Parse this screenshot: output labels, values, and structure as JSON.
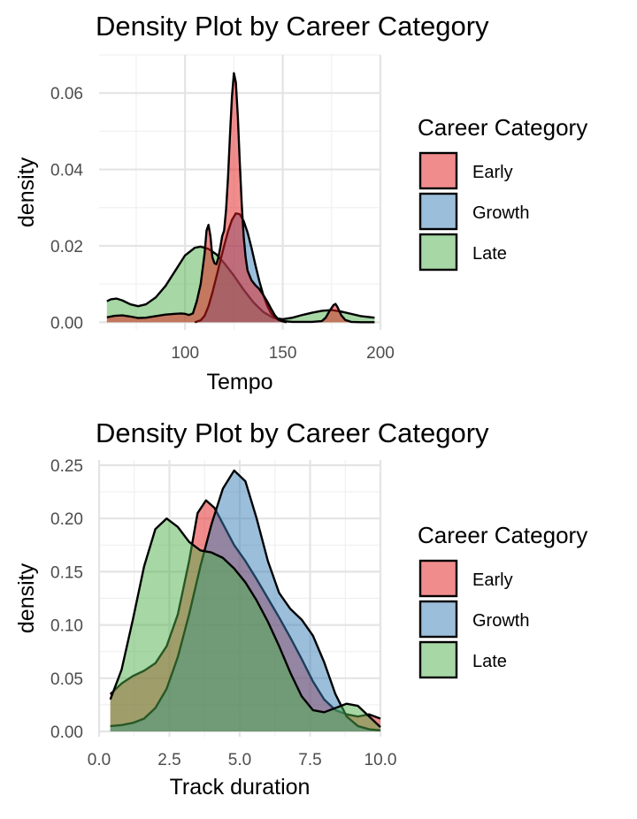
{
  "chart_data": [
    {
      "type": "area",
      "title": "Density Plot by Career Category",
      "xlabel": "Tempo",
      "ylabel": "density",
      "xlim": [
        56,
        200
      ],
      "ylim": [
        -0.002,
        0.07
      ],
      "x_ticks": [
        {
          "v": 100,
          "label": "100"
        },
        {
          "v": 150,
          "label": "150"
        },
        {
          "v": 200,
          "label": "200"
        }
      ],
      "y_ticks": [
        {
          "v": 0,
          "label": "0.00"
        },
        {
          "v": 0.02,
          "label": "0.02"
        },
        {
          "v": 0.04,
          "label": "0.04"
        },
        {
          "v": 0.06,
          "label": "0.06"
        }
      ],
      "grid": true,
      "legend": {
        "title": "Career Category",
        "position": "right"
      },
      "series": [
        {
          "name": "Late",
          "color": "#4DAF4A",
          "points": [
            [
              60,
              0.0055
            ],
            [
              62,
              0.006
            ],
            [
              65,
              0.0062
            ],
            [
              68,
              0.0057
            ],
            [
              72,
              0.0047
            ],
            [
              76,
              0.0042
            ],
            [
              80,
              0.0047
            ],
            [
              85,
              0.0065
            ],
            [
              90,
              0.0095
            ],
            [
              95,
              0.0135
            ],
            [
              100,
              0.0175
            ],
            [
              105,
              0.0195
            ],
            [
              108,
              0.0198
            ],
            [
              112,
              0.0192
            ],
            [
              116,
              0.0178
            ],
            [
              120,
              0.0155
            ],
            [
              125,
              0.0122
            ],
            [
              130,
              0.0085
            ],
            [
              135,
              0.0052
            ],
            [
              140,
              0.0027
            ],
            [
              145,
              0.0012
            ],
            [
              150,
              0.0008
            ],
            [
              155,
              0.0012
            ],
            [
              160,
              0.0019
            ],
            [
              165,
              0.0025
            ],
            [
              170,
              0.003
            ],
            [
              175,
              0.0032
            ],
            [
              180,
              0.0028
            ],
            [
              185,
              0.0022
            ],
            [
              190,
              0.0016
            ],
            [
              197,
              0.0012
            ]
          ]
        },
        {
          "name": "Growth",
          "color": "#377EB8",
          "points": [
            [
              105,
              0
            ],
            [
              108,
              0.0005
            ],
            [
              110,
              0.0017
            ],
            [
              112,
              0.0042
            ],
            [
              114,
              0.0078
            ],
            [
              116,
              0.0118
            ],
            [
              118,
              0.016
            ],
            [
              120,
              0.02
            ],
            [
              122,
              0.0238
            ],
            [
              124,
              0.0268
            ],
            [
              126,
              0.0285
            ],
            [
              128,
              0.0283
            ],
            [
              130,
              0.0265
            ],
            [
              132,
              0.0235
            ],
            [
              134,
              0.0195
            ],
            [
              136,
              0.015
            ],
            [
              138,
              0.0108
            ],
            [
              140,
              0.0072
            ],
            [
              142,
              0.0044
            ],
            [
              144,
              0.0024
            ],
            [
              146,
              0.0012
            ],
            [
              148,
              0.0006
            ],
            [
              150,
              0.0002
            ],
            [
              152,
              0
            ]
          ]
        },
        {
          "name": "Early",
          "color": "#E41A1C",
          "points": [
            [
              60,
              0.0013
            ],
            [
              64,
              0.0017
            ],
            [
              68,
              0.0018
            ],
            [
              72,
              0.0015
            ],
            [
              76,
              0.0011
            ],
            [
              80,
              0.0012
            ],
            [
              85,
              0.0016
            ],
            [
              90,
              0.002
            ],
            [
              95,
              0.0022
            ],
            [
              98,
              0.0023
            ],
            [
              100,
              0.0022
            ],
            [
              102,
              0.0019
            ],
            [
              104,
              0.0023
            ],
            [
              106,
              0.0055
            ],
            [
              108,
              0.01
            ],
            [
              110,
              0.018
            ],
            [
              111,
              0.024
            ],
            [
              112,
              0.0255
            ],
            [
              113,
              0.0225
            ],
            [
              114,
              0.017
            ],
            [
              115,
              0.0155
            ],
            [
              116,
              0.0152
            ],
            [
              117,
              0.0168
            ],
            [
              118,
              0.0195
            ],
            [
              119,
              0.0225
            ],
            [
              120,
              0.024
            ],
            [
              121,
              0.0295
            ],
            [
              122,
              0.038
            ],
            [
              123,
              0.049
            ],
            [
              124,
              0.059
            ],
            [
              125,
              0.0652
            ],
            [
              126,
              0.0628
            ],
            [
              127,
              0.054
            ],
            [
              128,
              0.042
            ],
            [
              129,
              0.031
            ],
            [
              130,
              0.0225
            ],
            [
              131,
              0.017
            ],
            [
              132,
              0.0135
            ],
            [
              134,
              0.011
            ],
            [
              136,
              0.0097
            ],
            [
              138,
              0.0087
            ],
            [
              140,
              0.0072
            ],
            [
              142,
              0.0055
            ],
            [
              144,
              0.0036
            ],
            [
              146,
              0.0018
            ],
            [
              148,
              0.0006
            ],
            [
              150,
              0.0003
            ],
            [
              155,
              0.0001
            ],
            [
              165,
              0.0001
            ],
            [
              170,
              0.0003
            ],
            [
              172,
              0.0012
            ],
            [
              174,
              0.003
            ],
            [
              176,
              0.0045
            ],
            [
              177,
              0.0048
            ],
            [
              178,
              0.004
            ],
            [
              180,
              0.0018
            ],
            [
              182,
              0.0006
            ],
            [
              185,
              0.0001
            ],
            [
              190,
              0
            ],
            [
              197,
              0
            ]
          ]
        }
      ]
    },
    {
      "type": "area",
      "title": "Density Plot by Career Category",
      "xlabel": "Track duration",
      "ylabel": "density",
      "xlim": [
        0,
        10
      ],
      "ylim": [
        -0.005,
        0.255
      ],
      "x_ticks": [
        {
          "v": 0,
          "label": "0.0"
        },
        {
          "v": 2.5,
          "label": "2.5"
        },
        {
          "v": 5,
          "label": "5.0"
        },
        {
          "v": 7.5,
          "label": "7.5"
        },
        {
          "v": 10,
          "label": "10.0"
        }
      ],
      "y_ticks": [
        {
          "v": 0,
          "label": "0.00"
        },
        {
          "v": 0.05,
          "label": "0.05"
        },
        {
          "v": 0.1,
          "label": "0.10"
        },
        {
          "v": 0.15,
          "label": "0.15"
        },
        {
          "v": 0.2,
          "label": "0.20"
        },
        {
          "v": 0.25,
          "label": "0.25"
        }
      ],
      "grid": true,
      "legend": {
        "title": "Career Category",
        "position": "right"
      },
      "series": [
        {
          "name": "Early",
          "color": "#E41A1C",
          "points": [
            [
              0.4,
              0.035
            ],
            [
              0.8,
              0.045
            ],
            [
              1.2,
              0.052
            ],
            [
              1.6,
              0.057
            ],
            [
              2.0,
              0.064
            ],
            [
              2.4,
              0.08
            ],
            [
              2.8,
              0.11
            ],
            [
              3.2,
              0.16
            ],
            [
              3.5,
              0.205
            ],
            [
              3.8,
              0.217
            ],
            [
              4.1,
              0.21
            ],
            [
              4.4,
              0.195
            ],
            [
              4.8,
              0.175
            ],
            [
              5.2,
              0.16
            ],
            [
              5.6,
              0.143
            ],
            [
              6.0,
              0.125
            ],
            [
              6.4,
              0.107
            ],
            [
              6.8,
              0.088
            ],
            [
              7.2,
              0.068
            ],
            [
              7.6,
              0.047
            ],
            [
              8.0,
              0.03
            ],
            [
              8.4,
              0.02
            ],
            [
              8.8,
              0.016
            ],
            [
              9.2,
              0.014
            ],
            [
              9.6,
              0.016
            ],
            [
              10.0,
              0.012
            ]
          ]
        },
        {
          "name": "Growth",
          "color": "#377EB8",
          "points": [
            [
              0.4,
              0.005
            ],
            [
              0.8,
              0.006
            ],
            [
              1.2,
              0.008
            ],
            [
              1.6,
              0.012
            ],
            [
              2.0,
              0.022
            ],
            [
              2.4,
              0.04
            ],
            [
              2.8,
              0.07
            ],
            [
              3.2,
              0.11
            ],
            [
              3.6,
              0.155
            ],
            [
              4.0,
              0.195
            ],
            [
              4.4,
              0.228
            ],
            [
              4.8,
              0.245
            ],
            [
              5.2,
              0.235
            ],
            [
              5.6,
              0.2
            ],
            [
              6.0,
              0.16
            ],
            [
              6.4,
              0.13
            ],
            [
              6.8,
              0.115
            ],
            [
              7.2,
              0.105
            ],
            [
              7.6,
              0.09
            ],
            [
              8.0,
              0.065
            ],
            [
              8.4,
              0.035
            ],
            [
              8.8,
              0.014
            ],
            [
              9.2,
              0.005
            ],
            [
              9.6,
              0.002
            ],
            [
              10.0,
              0.001
            ]
          ]
        },
        {
          "name": "Late",
          "color": "#4DAF4A",
          "points": [
            [
              0.4,
              0.03
            ],
            [
              0.8,
              0.058
            ],
            [
              1.2,
              0.105
            ],
            [
              1.6,
              0.155
            ],
            [
              2.0,
              0.19
            ],
            [
              2.4,
              0.2
            ],
            [
              2.8,
              0.192
            ],
            [
              3.2,
              0.178
            ],
            [
              3.6,
              0.17
            ],
            [
              4.0,
              0.168
            ],
            [
              4.4,
              0.163
            ],
            [
              4.8,
              0.153
            ],
            [
              5.2,
              0.14
            ],
            [
              5.6,
              0.123
            ],
            [
              6.0,
              0.103
            ],
            [
              6.4,
              0.08
            ],
            [
              6.8,
              0.055
            ],
            [
              7.2,
              0.033
            ],
            [
              7.6,
              0.02
            ],
            [
              8.0,
              0.018
            ],
            [
              8.4,
              0.022
            ],
            [
              8.8,
              0.026
            ],
            [
              9.2,
              0.024
            ],
            [
              9.6,
              0.014
            ],
            [
              10.0,
              0.004
            ]
          ]
        }
      ]
    }
  ]
}
